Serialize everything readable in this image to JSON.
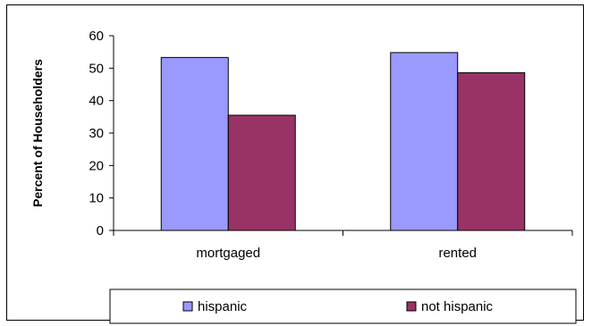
{
  "chart_data": {
    "type": "bar",
    "categories": [
      "mortgaged",
      "rented"
    ],
    "series": [
      {
        "name": "hispanic",
        "values": [
          53.3,
          54.8
        ],
        "color": "#9999ff"
      },
      {
        "name": "not hispanic",
        "values": [
          35.5,
          48.6
        ],
        "color": "#993366"
      }
    ],
    "ylabel": "Percent of Householders",
    "xlabel": "",
    "ylim": [
      0,
      60
    ],
    "yticks": [
      0,
      10,
      20,
      30,
      40,
      50,
      60
    ],
    "grid": false,
    "legend_position": "bottom"
  }
}
